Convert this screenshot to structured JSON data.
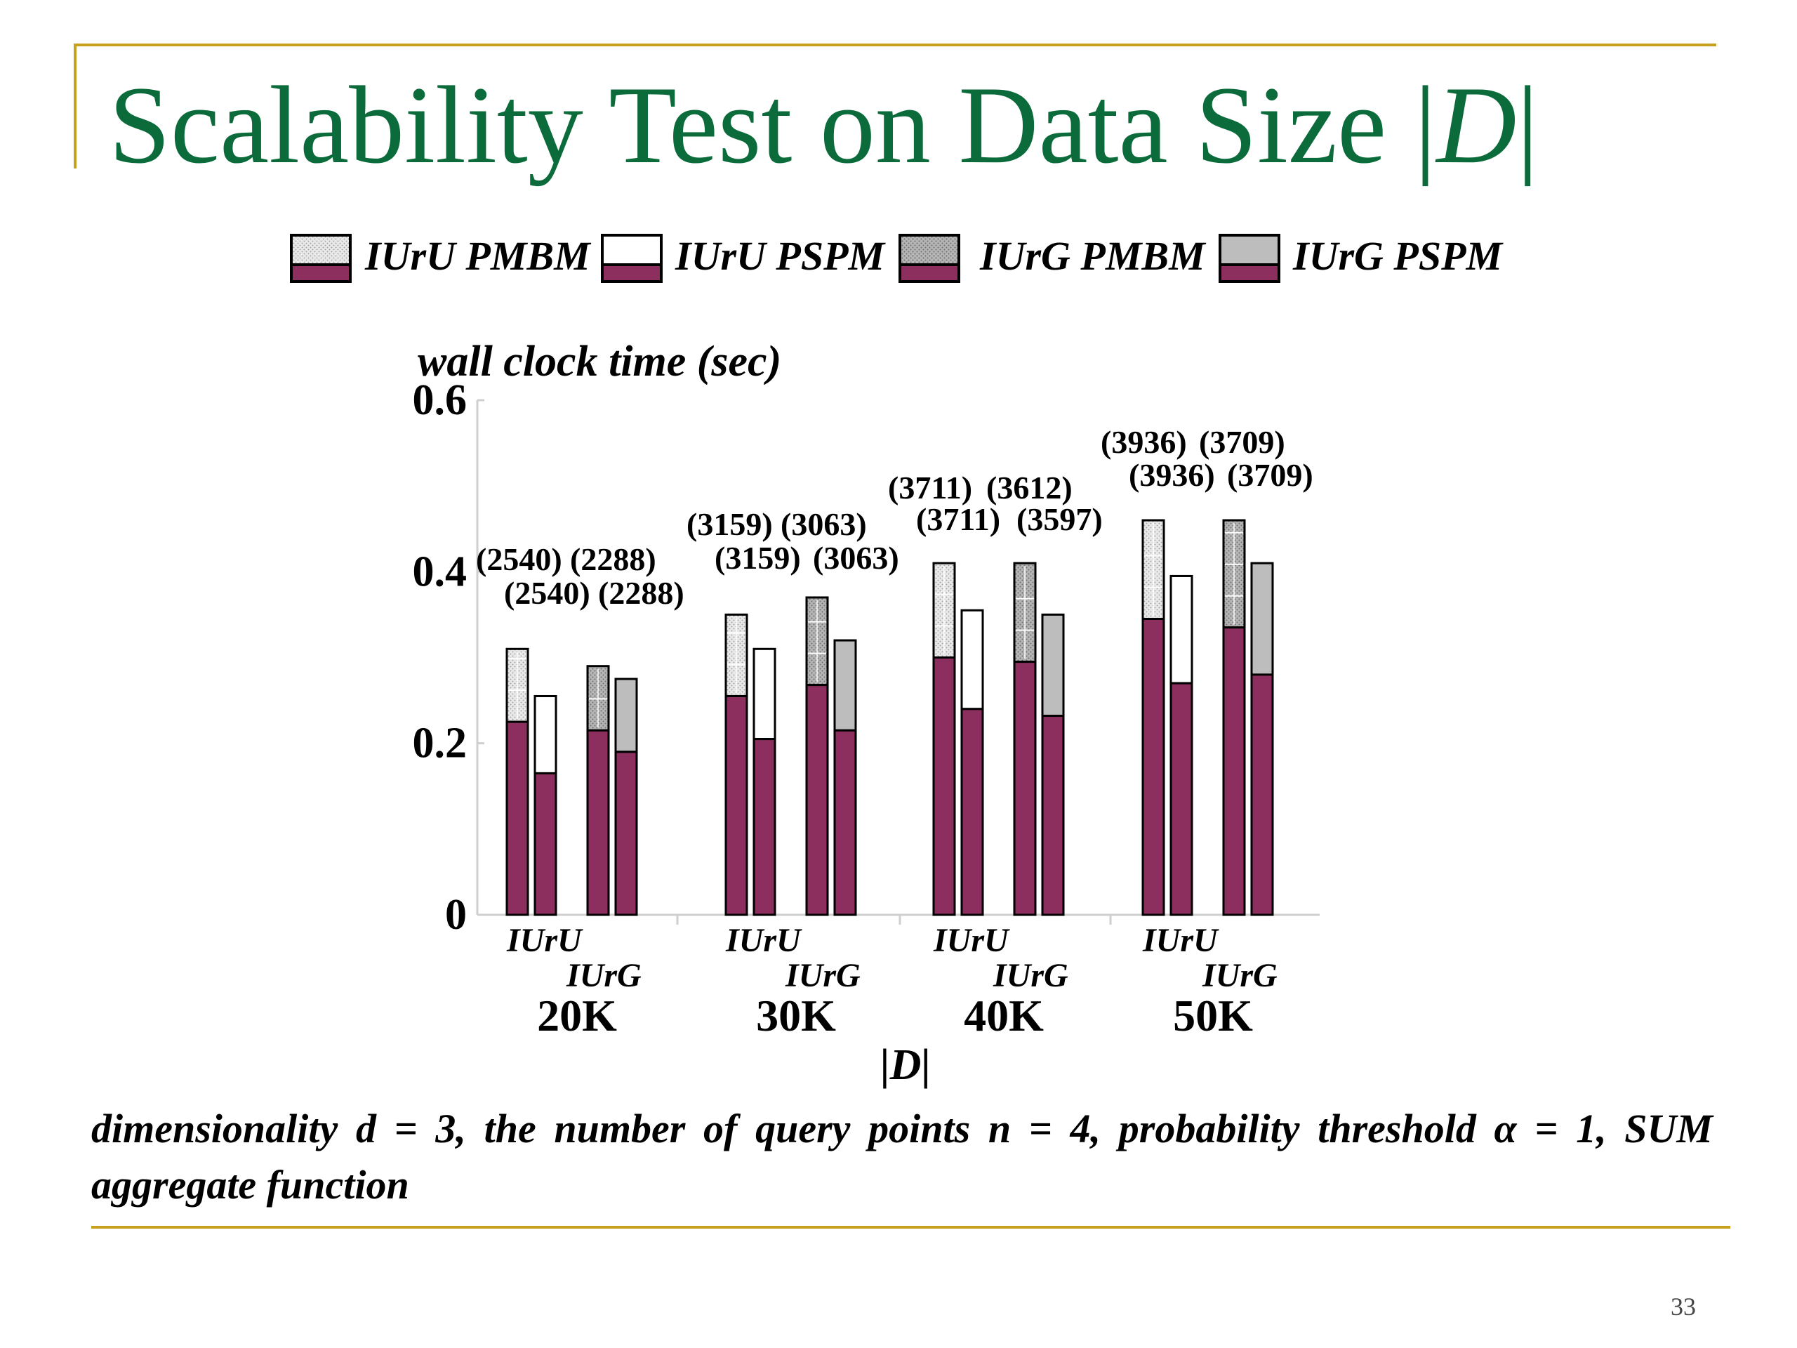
{
  "slide": {
    "title": "Scalability Test on Data Size |D|",
    "title_parts": {
      "main": "Scalability Test on Data Size |",
      "italic": "D",
      "end": "|"
    },
    "caption": "dimensionality d = 3, the number of query points n = 4, probability threshold α = 1, SUM aggregate function",
    "page_number": "33",
    "colors": {
      "title": "#0b6b3a",
      "rule": "#c8a020",
      "bar_base": "#8c2f5e",
      "grey_fill": "#bdbdbd",
      "light_fill": "#e8e8e8"
    }
  },
  "chart_data": {
    "type": "bar",
    "ylabel": "wall clock time (sec)",
    "xlabel": "|D|",
    "ylim": [
      0,
      0.6
    ],
    "yticks": [
      "0",
      "0.2",
      "0.4",
      "0.6"
    ],
    "categories": [
      "20K",
      "30K",
      "40K",
      "50K"
    ],
    "subgroups": [
      "IUrU",
      "IUrG"
    ],
    "series": [
      {
        "name": "IUrU PMBM",
        "base": [
          0.225,
          0.255,
          0.3,
          0.345
        ],
        "total": [
          0.31,
          0.35,
          0.41,
          0.46
        ]
      },
      {
        "name": "IUrU PSPM",
        "base": [
          0.165,
          0.205,
          0.24,
          0.27
        ],
        "total": [
          0.255,
          0.31,
          0.355,
          0.395
        ]
      },
      {
        "name": "IUrG PMBM",
        "base": [
          0.215,
          0.268,
          0.295,
          0.335
        ],
        "total": [
          0.29,
          0.37,
          0.41,
          0.46
        ]
      },
      {
        "name": "IUrG PSPM",
        "base": [
          0.19,
          0.215,
          0.232,
          0.28
        ],
        "total": [
          0.275,
          0.32,
          0.35,
          0.41
        ]
      }
    ],
    "annotations": [
      {
        "group": "20K",
        "row1": [
          "(2540)",
          "(2288)"
        ],
        "row2": [
          "(2540)",
          "(2288)"
        ]
      },
      {
        "group": "30K",
        "row1": [
          "(3159)",
          "(3063)"
        ],
        "row2": [
          "(3159)",
          "(3063)"
        ]
      },
      {
        "group": "40K",
        "row1": [
          "(3711)",
          "(3612)"
        ],
        "row2": [
          "(3711)",
          "(3597)"
        ]
      },
      {
        "group": "50K",
        "row1": [
          "(3936)",
          "(3709)"
        ],
        "row2": [
          "(3936)",
          "(3709)"
        ]
      }
    ],
    "legend_position": "top"
  }
}
